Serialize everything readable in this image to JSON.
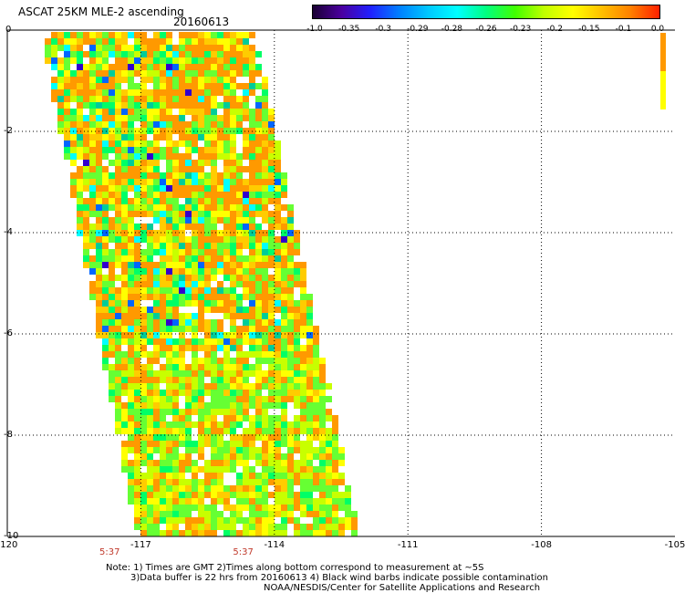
{
  "header": {
    "title": "ASCAT 25KM MLE-2 ascending",
    "date": "20160613"
  },
  "colorbar": {
    "tick_labels": [
      "-1.0",
      "-0.35",
      "-0.3",
      "-0.29",
      "-0.28",
      "-0.26",
      "-0.23",
      "-0.2",
      "-0.15",
      "-0.1",
      "0.0"
    ],
    "colors": [
      "#1a0033",
      "#4b00a0",
      "#2020ff",
      "#0080ff",
      "#00c8ff",
      "#00ffff",
      "#00ff80",
      "#40ff00",
      "#c0ff00",
      "#ffff00",
      "#ffc000",
      "#ff8000",
      "#ff2000"
    ]
  },
  "map": {
    "x_ticks": [
      "-120",
      "-117",
      "-114",
      "-111",
      "-108",
      "-105"
    ],
    "y_ticks": [
      "0",
      "-2",
      "-4",
      "-6",
      "-8",
      "-10"
    ],
    "x_range": [
      -120,
      -105
    ],
    "y_range": [
      0,
      -10
    ],
    "time_labels": [
      "5:37",
      "5:37"
    ],
    "swath_palette": [
      "#ff9900",
      "#ffcc00",
      "#ffff00",
      "#c8ff00",
      "#66ff33",
      "#00ff66",
      "#00cc99",
      "#00ffff",
      "#0066ff",
      "#3300cc"
    ]
  },
  "notes": {
    "line1": "Note: 1) Times are GMT 2)Times along bottom correspond to measurement at ~5S",
    "line2": "3)Data buffer is 22 hrs from 20160613 4) Black wind barbs indicate possible contamination",
    "line3": "NOAA/NESDIS/Center for Satellite Applications and Research"
  }
}
